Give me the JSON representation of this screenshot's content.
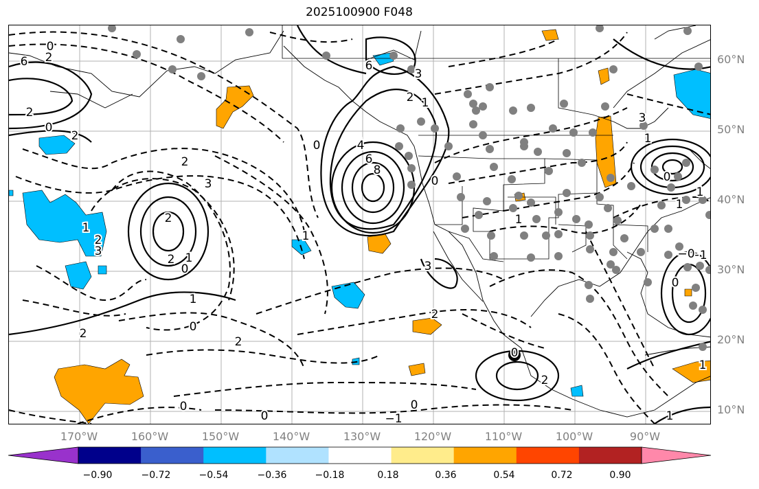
{
  "title": "2025100900 F048",
  "lat_labels": [
    "60°N",
    "50°N",
    "40°N",
    "30°N",
    "20°N",
    "10°N"
  ],
  "lon_labels": [
    "170°W",
    "160°W",
    "150°W",
    "140°W",
    "130°W",
    "120°W",
    "110°W",
    "100°W",
    "90°W"
  ],
  "colorbar": {
    "colors": [
      "#9932cc",
      "#00008b",
      "#3a5fcd",
      "#00bfff",
      "#b0e2ff",
      "#ffffff",
      "#ffec8b",
      "#ffa500",
      "#ff4500",
      "#b22222",
      "#ff88aa"
    ],
    "tick_labels": [
      "−0.90",
      "−0.72",
      "−0.54",
      "−0.36",
      "−0.18",
      "0.18",
      "0.36",
      "0.54",
      "0.72",
      "0.90"
    ]
  },
  "contour_labels": [
    "0",
    "2",
    "6",
    "2",
    "0",
    "2",
    "2",
    "3",
    "2",
    "2",
    "1",
    "0",
    "1",
    "0",
    "2",
    "1",
    "6",
    "3",
    "2",
    "4",
    "6",
    "8",
    "0",
    "1",
    "0",
    "3",
    "2",
    "1",
    "0",
    "2",
    "3",
    "1",
    "0",
    "1",
    "1",
    "−1",
    "−0",
    "0",
    "1",
    "1",
    "2",
    "3",
    "2",
    "0",
    "−1",
    "0",
    "0",
    "1"
  ],
  "colors": {
    "orange": "#ffa500",
    "blue": "#00bfff",
    "grid": "#b0b0b0",
    "dot": "#808080"
  },
  "marker_label": "storm-center"
}
